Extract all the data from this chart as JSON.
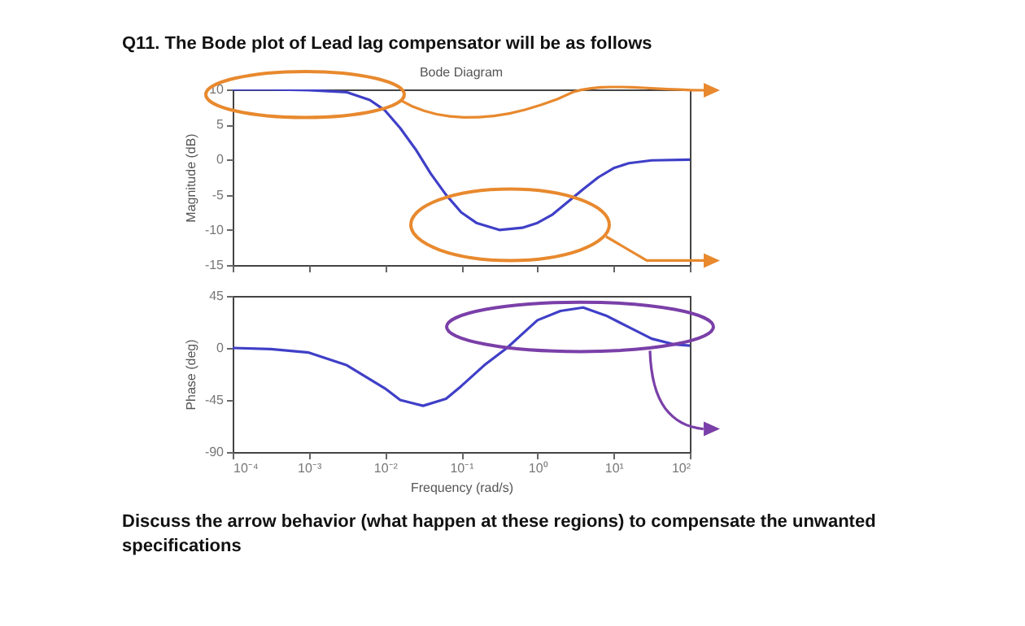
{
  "chart_data": [
    {
      "type": "line",
      "title": "Q11. The Bode plot of Lead lag compensator will be as follows",
      "subtitle": "Bode Diagram",
      "ylabel": "Magnitude (dB)",
      "x": [
        0.0001,
        0.000316,
        0.001,
        0.00316,
        0.00631,
        0.01,
        0.0158,
        0.0251,
        0.0398,
        0.0631,
        0.1,
        0.158,
        0.316,
        0.631,
        1,
        1.58,
        2.51,
        3.98,
        6.31,
        10,
        15.8,
        31.6,
        100
      ],
      "series": [
        {
          "color": "#3f3fc8",
          "values": [
            10,
            10,
            9.9,
            9.6,
            8.5,
            7,
            4.5,
            1.5,
            -2,
            -5,
            -7.5,
            -9,
            -10,
            -9.7,
            -9,
            -7.8,
            -6,
            -4.2,
            -2.5,
            -1.2,
            -0.5,
            -0.1,
            0
          ]
        }
      ],
      "xlim": [
        0.0001,
        100
      ],
      "xticks": [
        {
          "value": 0.0001,
          "label": null
        },
        {
          "value": 0.001,
          "label": null
        },
        {
          "value": 0.01,
          "label": null
        },
        {
          "value": 0.1,
          "label": null
        },
        {
          "value": 1,
          "label": null
        },
        {
          "value": 10,
          "label": null
        },
        {
          "value": 100,
          "label": null
        }
      ],
      "ylim": [
        -15,
        10
      ],
      "yticks": [
        -15,
        -10,
        -5,
        0,
        5,
        10
      ],
      "tick_labels": "y",
      "grid": false,
      "log": "x"
    },
    {
      "type": "line",
      "xlabel": "Frequency  (rad/s)",
      "ylabel": "Phase (deg)",
      "x": [
        0.0001,
        0.000316,
        0.001,
        0.00316,
        0.01,
        0.0158,
        0.0316,
        0.0631,
        0.1,
        0.2,
        0.398,
        0.631,
        1,
        2.0,
        3.98,
        7.94,
        15.8,
        31.6,
        63.1,
        100
      ],
      "series": [
        {
          "color": "#3f3fc8",
          "values": [
            0,
            -1,
            -4,
            -15,
            -35,
            -45,
            -50,
            -44,
            -33,
            -15,
            0,
            12,
            24,
            32,
            35,
            28,
            18,
            8,
            3,
            2
          ]
        }
      ],
      "xlim": [
        0.0001,
        100
      ],
      "xticks": [
        {
          "value": 0.0001,
          "label": "10⁻⁴"
        },
        {
          "value": 0.001,
          "label": "10⁻³"
        },
        {
          "value": 0.01,
          "label": "10⁻²"
        },
        {
          "value": 0.1,
          "label": "10⁻¹"
        },
        {
          "value": 1,
          "label": "10⁰"
        },
        {
          "value": 10,
          "label": "10¹"
        },
        {
          "value": 100,
          "label": "10²"
        }
      ],
      "ylim": [
        -90,
        45
      ],
      "yticks": [
        -90,
        -45,
        0,
        45
      ],
      "grid": false,
      "log": "x",
      "annotations": [
        "Discuss the arrow behavior (what happen at these regions) to compensate the unwanted specifications"
      ]
    }
  ]
}
